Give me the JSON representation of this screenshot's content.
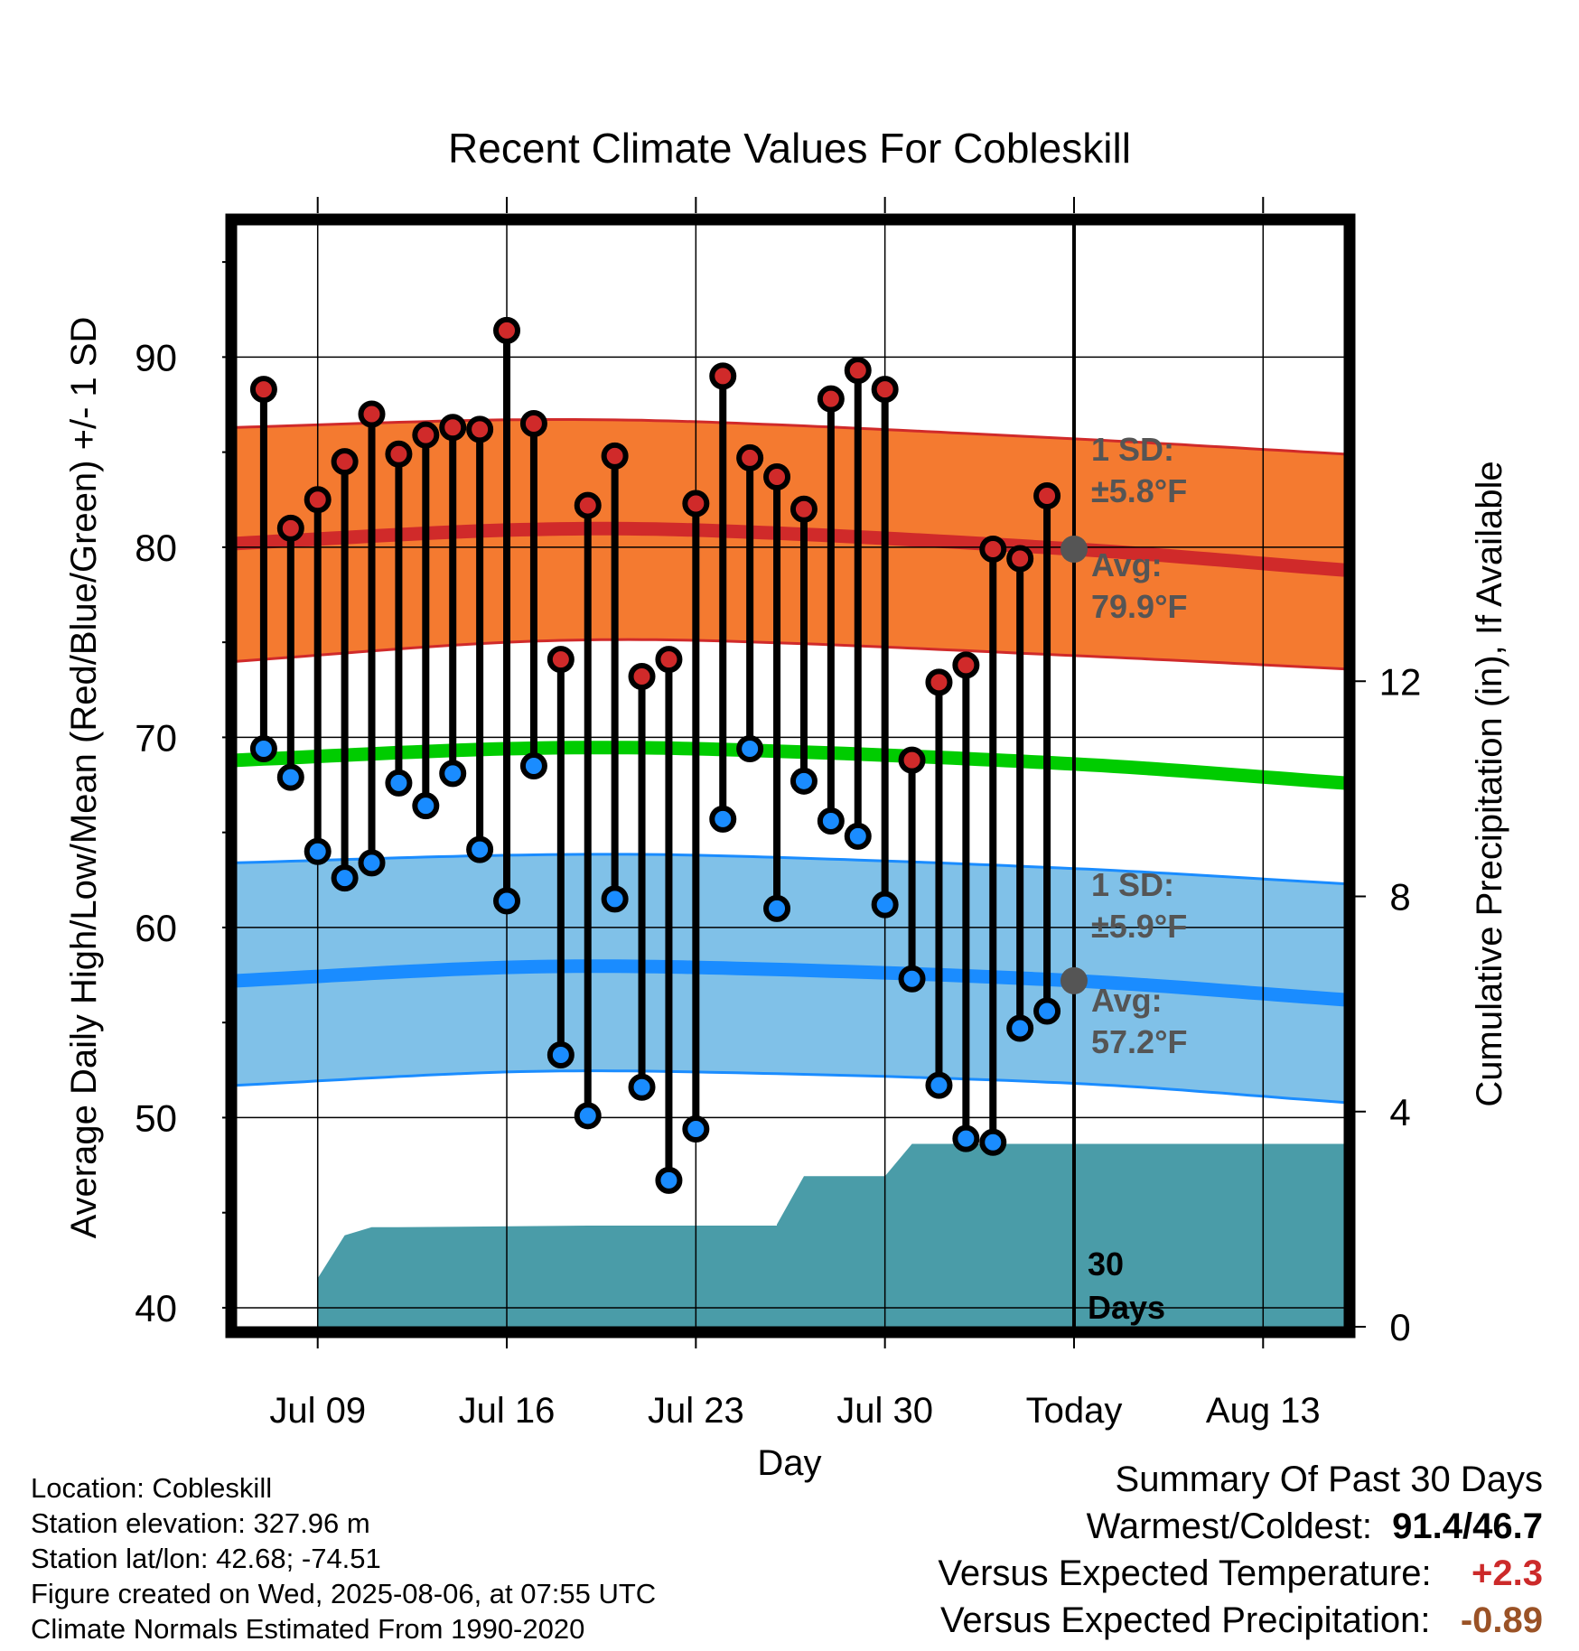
{
  "chart_data": {
    "type": "line",
    "title": "Recent Climate Values For Cobleskill",
    "xlabel": "Day",
    "ylabel": "Average Daily High/Low/Mean (Red/Blue/Green) +/- 1 SD",
    "y2label": "Cumulative Precipitation (in), If Available",
    "x_tick_labels": [
      "Jul 09",
      "Jul 16",
      "Jul 23",
      "Jul 30",
      "Today",
      "Aug 13"
    ],
    "x_tick_dates": [
      "2025-07-09",
      "2025-07-16",
      "2025-07-23",
      "2025-07-30",
      "2025-08-06",
      "2025-08-13"
    ],
    "xlim": [
      "2025-07-06",
      "2025-08-16"
    ],
    "ylim": [
      39,
      97
    ],
    "yticks": [
      40,
      50,
      60,
      70,
      80,
      90
    ],
    "y2lim": [
      0,
      20.5
    ],
    "y2ticks": [
      0,
      4,
      8,
      12
    ],
    "grid": true,
    "colors": {
      "high_band": "#f47a30",
      "high_line": "#d02a2a",
      "low_band": "#80c1e8",
      "low_line": "#1a8cff",
      "mean_line": "#00cc00",
      "precip": "#4a9ca8",
      "high_dot": "#d02a2a",
      "low_dot": "#1a8cff",
      "today_dot": "#555555"
    },
    "normals": {
      "dates": [
        "2025-07-06",
        "2025-07-16",
        "2025-07-23",
        "2025-08-06",
        "2025-08-16"
      ],
      "high_avg": [
        80.2,
        80.9,
        80.9,
        79.9,
        78.8
      ],
      "high_upper": [
        86.3,
        86.7,
        86.6,
        85.7,
        84.9
      ],
      "high_lower": [
        74.0,
        75.0,
        75.1,
        74.3,
        73.6
      ],
      "mean_avg": [
        68.8,
        69.4,
        69.4,
        68.6,
        67.6
      ],
      "low_avg": [
        57.2,
        57.9,
        57.9,
        57.2,
        56.2
      ],
      "low_upper": [
        63.4,
        63.8,
        63.8,
        63.1,
        62.3
      ],
      "low_lower": [
        51.7,
        52.4,
        52.4,
        51.8,
        50.8
      ]
    },
    "observations": [
      {
        "date": "2025-07-07",
        "high": 88.3,
        "low": 69.4
      },
      {
        "date": "2025-07-08",
        "high": 81.0,
        "low": 67.9
      },
      {
        "date": "2025-07-09",
        "high": 82.5,
        "low": 64.0
      },
      {
        "date": "2025-07-10",
        "high": 84.5,
        "low": 62.6
      },
      {
        "date": "2025-07-11",
        "high": 87.0,
        "low": 63.4
      },
      {
        "date": "2025-07-12",
        "high": 84.9,
        "low": 67.6
      },
      {
        "date": "2025-07-13",
        "high": 85.9,
        "low": 66.4
      },
      {
        "date": "2025-07-14",
        "high": 86.3,
        "low": 68.1
      },
      {
        "date": "2025-07-15",
        "high": 86.2,
        "low": 64.1
      },
      {
        "date": "2025-07-16",
        "high": 91.4,
        "low": 61.4
      },
      {
        "date": "2025-07-17",
        "high": 86.5,
        "low": 68.5
      },
      {
        "date": "2025-07-18",
        "high": 74.1,
        "low": 53.3
      },
      {
        "date": "2025-07-19",
        "high": 82.2,
        "low": 50.1
      },
      {
        "date": "2025-07-20",
        "high": 84.8,
        "low": 61.5
      },
      {
        "date": "2025-07-21",
        "high": 73.2,
        "low": 51.6
      },
      {
        "date": "2025-07-22",
        "high": 74.1,
        "low": 46.7
      },
      {
        "date": "2025-07-23",
        "high": 82.3,
        "low": 49.4
      },
      {
        "date": "2025-07-24",
        "high": 89.0,
        "low": 65.7
      },
      {
        "date": "2025-07-25",
        "high": 84.7,
        "low": 69.4
      },
      {
        "date": "2025-07-26",
        "high": 83.7,
        "low": 61.0
      },
      {
        "date": "2025-07-27",
        "high": 82.0,
        "low": 67.7
      },
      {
        "date": "2025-07-28",
        "high": 87.8,
        "low": 65.6
      },
      {
        "date": "2025-07-29",
        "high": 89.3,
        "low": 64.8
      },
      {
        "date": "2025-07-30",
        "high": 88.3,
        "low": 61.2
      },
      {
        "date": "2025-07-31",
        "high": 68.8,
        "low": 57.3
      },
      {
        "date": "2025-08-01",
        "high": 72.9,
        "low": 51.7
      },
      {
        "date": "2025-08-02",
        "high": 73.8,
        "low": 48.9
      },
      {
        "date": "2025-08-03",
        "high": 79.9,
        "low": 48.7
      },
      {
        "date": "2025-08-04",
        "high": 79.4,
        "low": 54.7
      },
      {
        "date": "2025-08-05",
        "high": 82.7,
        "low": 55.6
      }
    ],
    "today_points": {
      "date": "2025-08-06",
      "high": 79.9,
      "low": 57.2
    },
    "precipitation": {
      "dates": [
        "2025-07-08",
        "2025-07-09",
        "2025-07-09",
        "2025-07-10",
        "2025-07-10",
        "2025-07-11",
        "2025-07-12",
        "2025-07-19",
        "2025-07-26",
        "2025-07-26",
        "2025-07-27",
        "2025-07-30",
        "2025-07-31",
        "2025-08-16"
      ],
      "values": [
        0.0,
        0.0,
        0.9,
        1.7,
        1.7,
        1.85,
        1.85,
        1.88,
        1.88,
        1.9,
        2.8,
        2.8,
        3.4,
        3.4
      ]
    },
    "annotations": {
      "high_sd": "1 SD:",
      "high_sd_value": "±5.8°F",
      "high_avg": "Avg:",
      "high_avg_value": "79.9°F",
      "low_sd": "1 SD:",
      "low_sd_value": "±5.9°F",
      "low_avg": "Avg:",
      "low_avg_value": "57.2°F",
      "days": "30",
      "days_unit": "Days"
    }
  },
  "footer": {
    "location": "Location: Cobleskill",
    "elevation": "Station elevation: 327.96 m",
    "latlon": "Station lat/lon: 42.68; -74.51",
    "created": "Figure created on Wed, 2025-08-06, at 07:55 UTC",
    "normals": "Climate Normals Estimated From 1990-2020"
  },
  "summary": {
    "title": "Summary Of Past 30 Days",
    "warm_cold_label": "Warmest/Coldest:",
    "warm_cold_value": "91.4/46.7",
    "temp_label": "Versus Expected Temperature:",
    "temp_value": "+2.3",
    "temp_color": "#cc2a2a",
    "precip_label": "Versus Expected Precipitation:",
    "precip_value": "-0.89",
    "precip_color": "#9a5226"
  }
}
